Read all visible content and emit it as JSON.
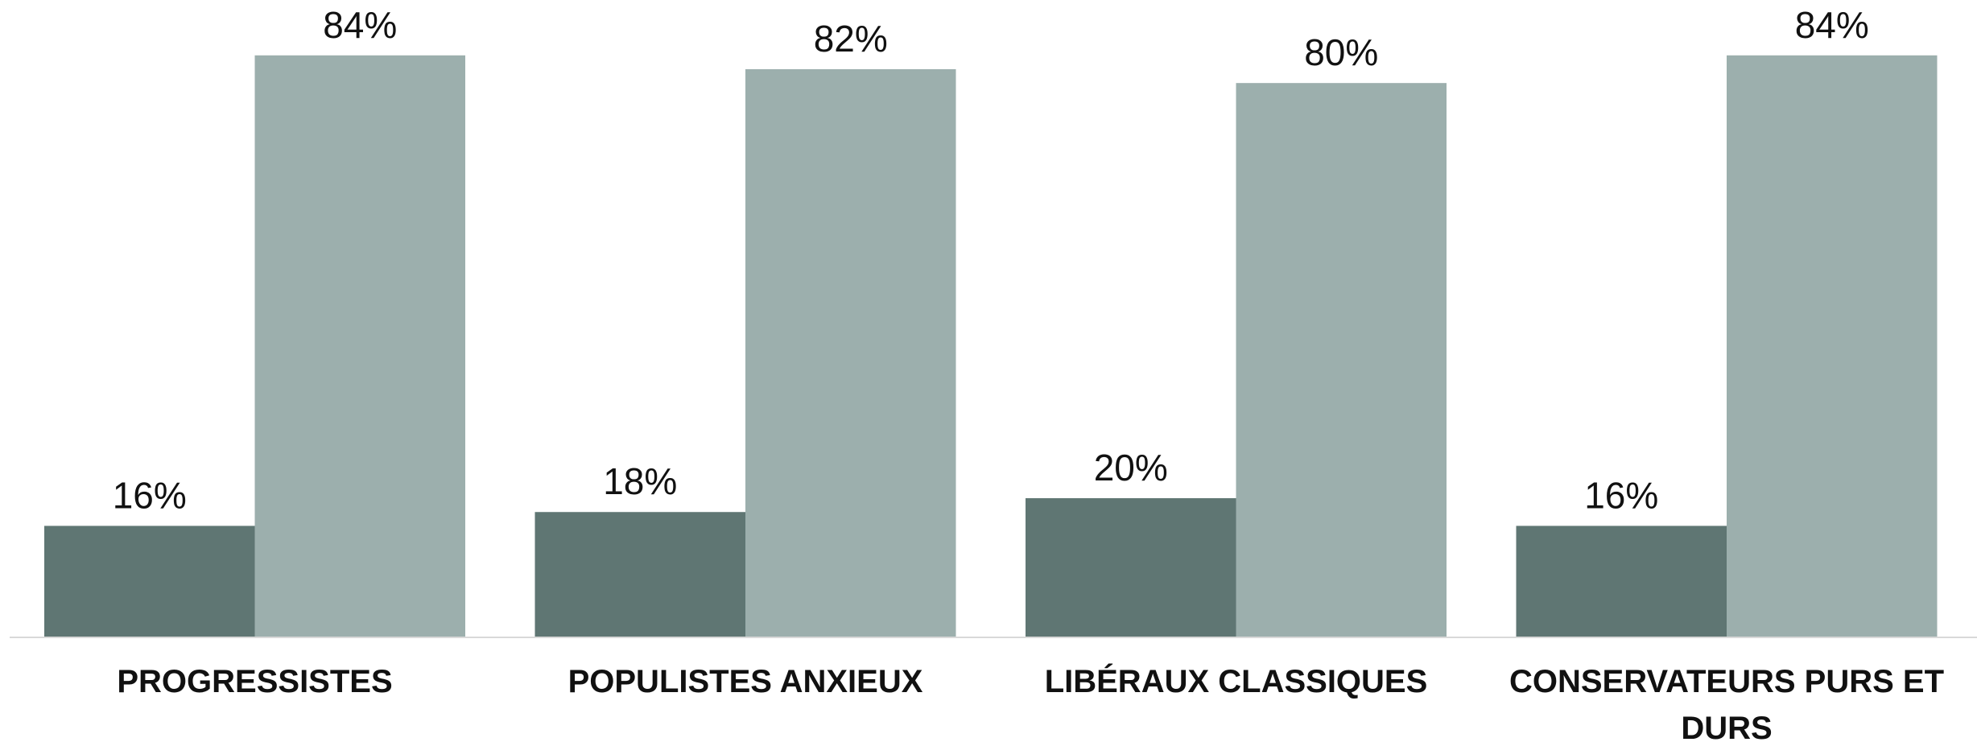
{
  "chart_data": {
    "type": "bar",
    "categories": [
      "PROGRESSISTES",
      "POPULISTES ANXIEUX",
      "LIBÉRAUX CLASSIQUES",
      "CONSERVATEURS PURS ET DURS"
    ],
    "series": [
      {
        "color": "#5f7673",
        "values": [
          16,
          18,
          20,
          16
        ],
        "value_labels": [
          "16%",
          "18%",
          "20%",
          "16%"
        ]
      },
      {
        "color": "#9cafad",
        "values": [
          84,
          82,
          80,
          84
        ],
        "value_labels": [
          "84%",
          "82%",
          "80%",
          "84%"
        ]
      }
    ],
    "ylim": [
      0,
      92
    ]
  }
}
